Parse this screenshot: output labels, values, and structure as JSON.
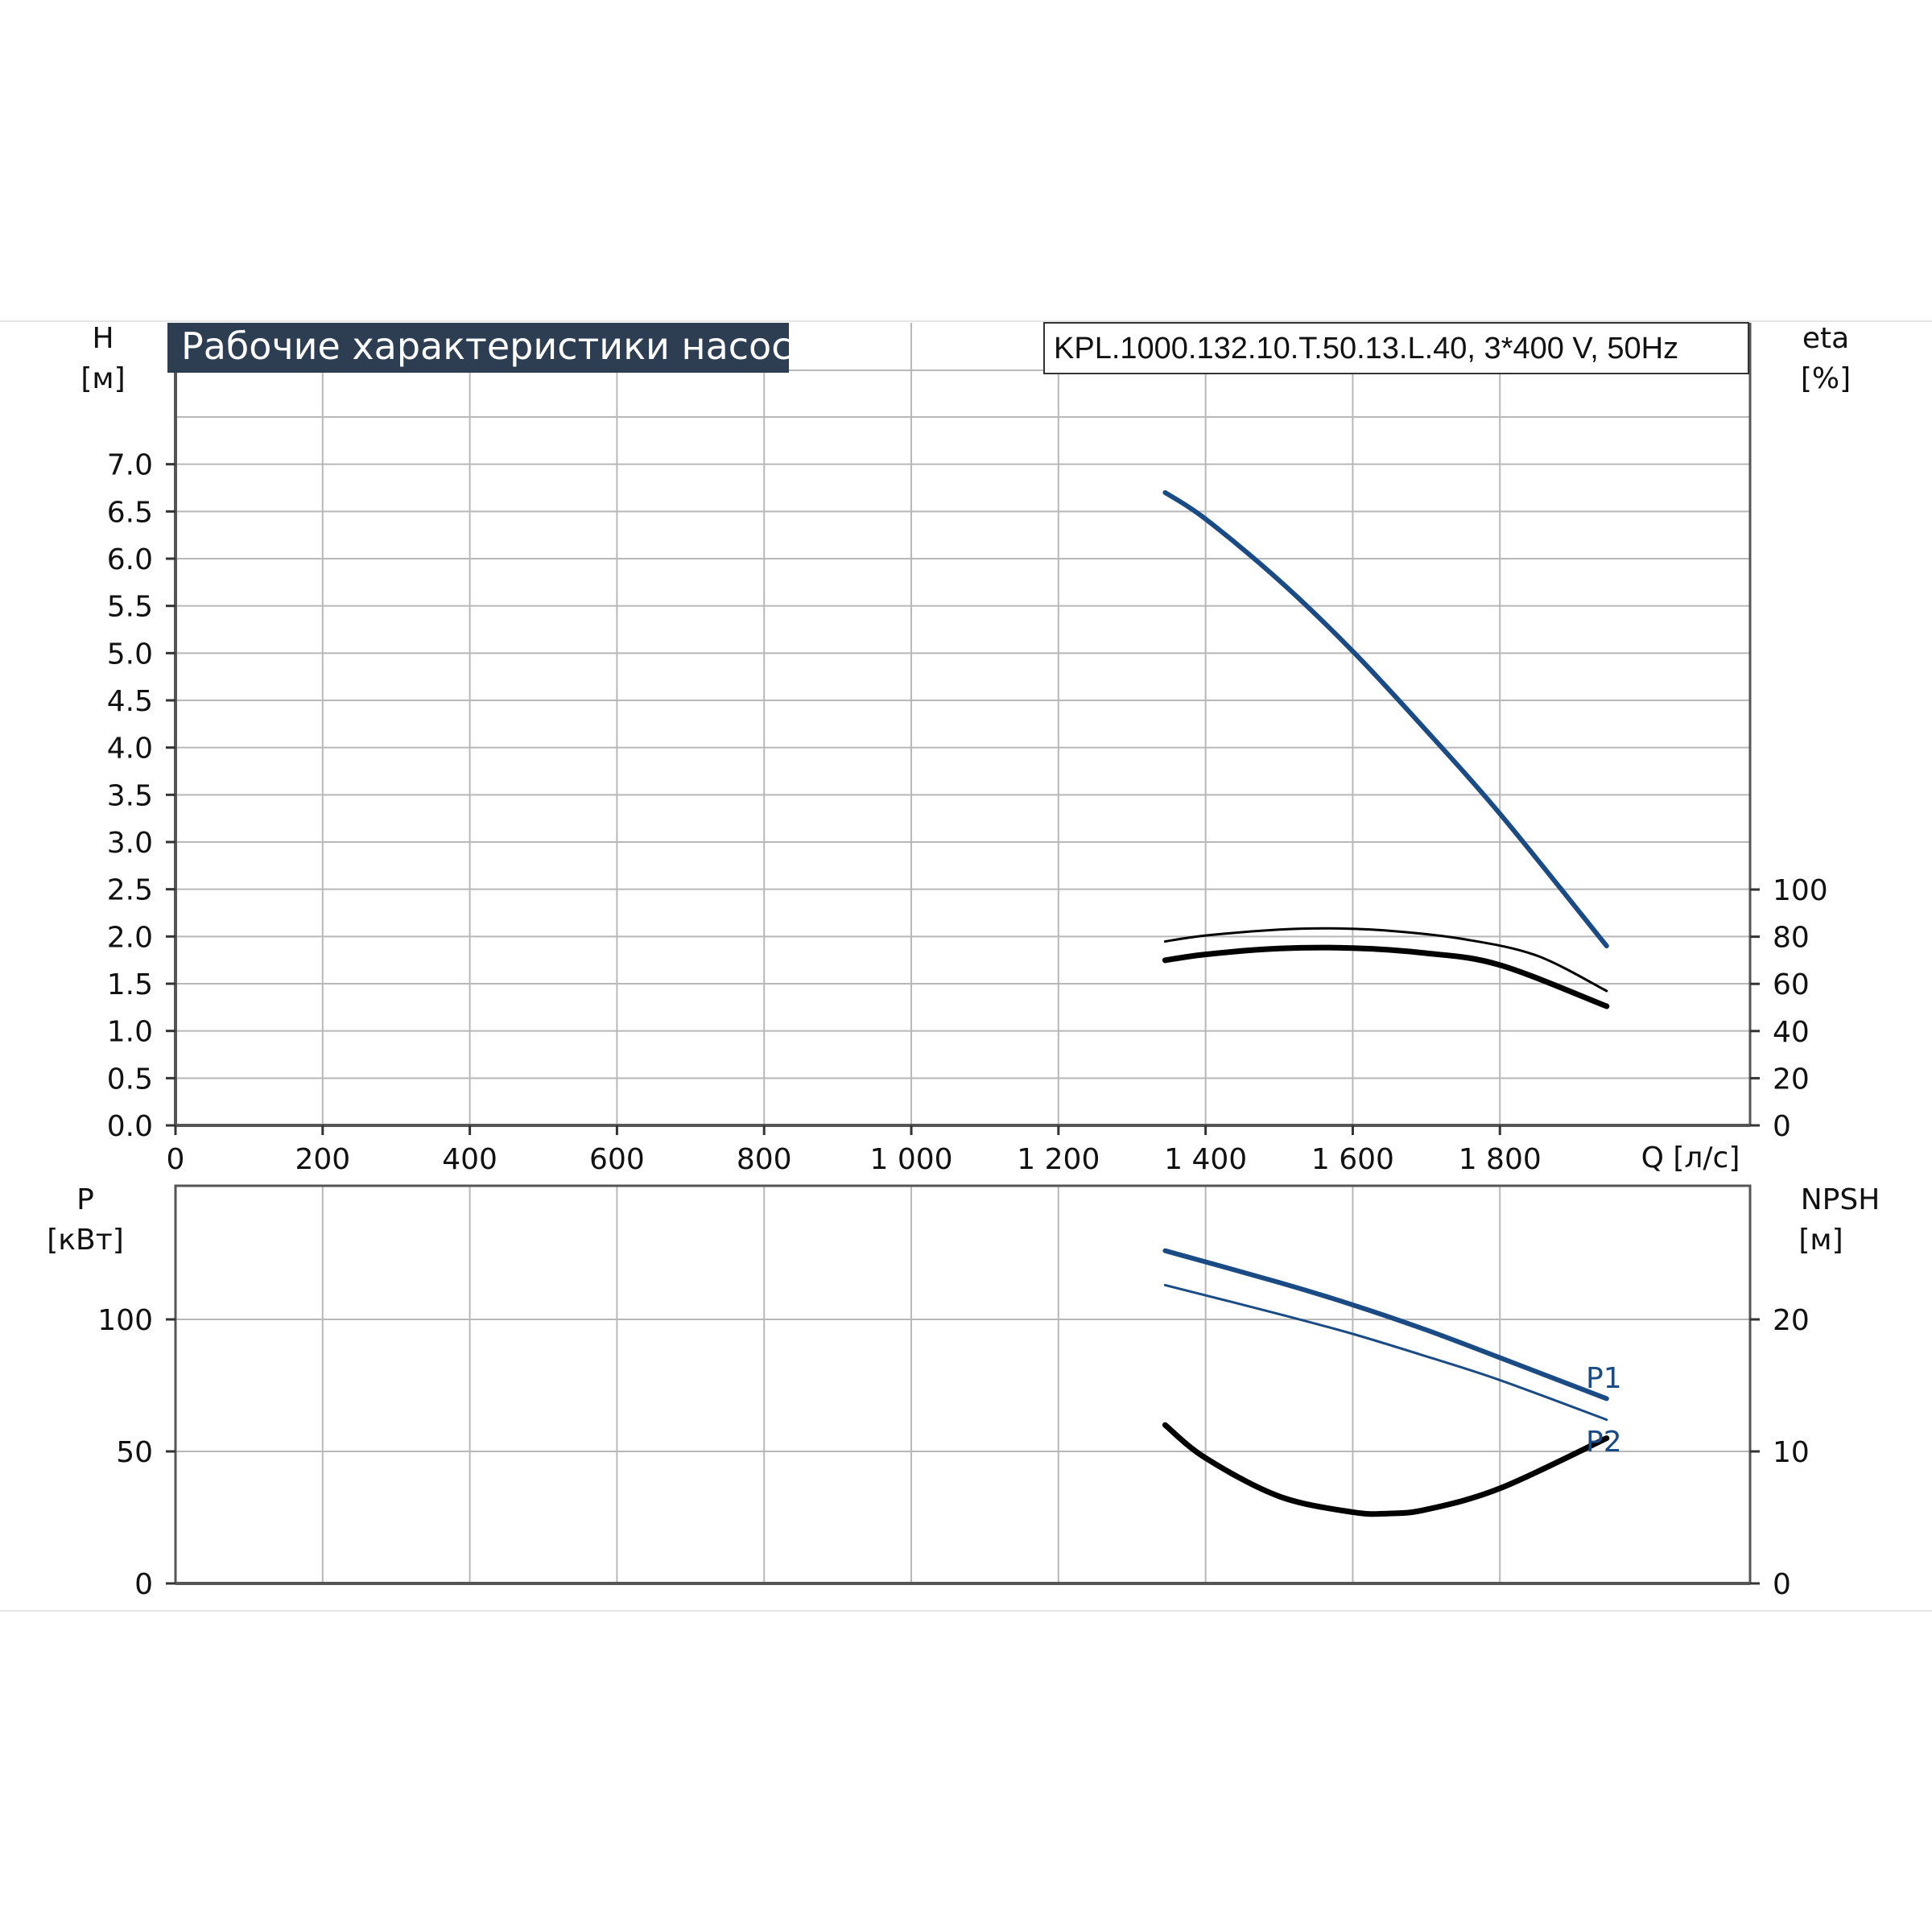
{
  "title": "Рабочие характеристики насоса",
  "model": "KPL.1000.132.10.T.50.13.L.40, 3*400 V, 50Hz",
  "colors": {
    "blue": "#1a4b85",
    "black": "#000000",
    "title_bg": "#2e3e52",
    "grid": "#b8b8b8"
  },
  "chart_data": [
    {
      "type": "line",
      "title": "Рабочие характеристики насоса",
      "xlabel": "Q [л/с]",
      "xlim": [
        0,
        2140
      ],
      "x_ticks": [
        "0",
        "200",
        "400",
        "600",
        "800",
        "1 000",
        "1 200",
        "1 400",
        "1 600",
        "1 800"
      ],
      "x_tick_values": [
        0,
        200,
        400,
        600,
        800,
        1000,
        1200,
        1400,
        1600,
        1800
      ],
      "y_left": {
        "label": "H",
        "unit": "[м]",
        "ylim": [
          0,
          7.5
        ],
        "ticks": [
          "0.0",
          "0.5",
          "1.0",
          "1.5",
          "2.0",
          "2.5",
          "3.0",
          "3.5",
          "4.0",
          "4.5",
          "5.0",
          "5.5",
          "6.0",
          "6.5",
          "7.0"
        ]
      },
      "y_right": {
        "label": "eta",
        "unit": "[%]",
        "ylim": [
          0,
          100
        ],
        "ticks": [
          "0",
          "20",
          "40",
          "60",
          "80",
          "100"
        ]
      },
      "grid": true,
      "series": [
        {
          "axis": "left",
          "color": "#1a4b85",
          "width": 6,
          "x": [
            1345,
            1400,
            1500,
            1600,
            1700,
            1800,
            1945
          ],
          "y": [
            6.7,
            6.42,
            5.77,
            5.02,
            4.18,
            3.3,
            1.9
          ]
        },
        {
          "axis": "right",
          "color": "#000000",
          "width": 3,
          "x": [
            1345,
            1400,
            1500,
            1570,
            1650,
            1750,
            1850,
            1945
          ],
          "y": [
            78,
            80.5,
            83,
            83.5,
            82.5,
            79,
            72,
            57
          ]
        },
        {
          "axis": "right",
          "color": "#000000",
          "width": 7,
          "x": [
            1345,
            1400,
            1500,
            1600,
            1700,
            1800,
            1945
          ],
          "y": [
            70,
            72.5,
            75,
            75.2,
            73,
            68,
            50.5
          ]
        }
      ]
    },
    {
      "type": "line",
      "xlim": [
        0,
        2140
      ],
      "y_left": {
        "label": "P",
        "unit": "[кВт]",
        "ylim": [
          0,
          150
        ],
        "ticks": [
          "0",
          "50",
          "100"
        ]
      },
      "y_right": {
        "label": "NPSH",
        "unit": "[м]",
        "ylim": [
          0,
          30
        ],
        "ticks": [
          "0",
          "10",
          "20"
        ]
      },
      "grid": true,
      "series": [
        {
          "name": "P1",
          "axis": "left",
          "color": "#1a4b85",
          "width": 6,
          "x": [
            1345,
            1500,
            1600,
            1700,
            1800,
            1945
          ],
          "y": [
            126,
            114,
            105.5,
            96,
            85.5,
            70
          ]
        },
        {
          "name": "P2",
          "axis": "left",
          "color": "#1a4b85",
          "width": 3,
          "x": [
            1345,
            1500,
            1600,
            1700,
            1800,
            1945
          ],
          "y": [
            113,
            102,
            94.5,
            86,
            77,
            62
          ]
        },
        {
          "axis": "right",
          "color": "#000000",
          "width": 7,
          "x": [
            1345,
            1400,
            1500,
            1600,
            1650,
            1700,
            1800,
            1945
          ],
          "y": [
            12,
            9.5,
            6.6,
            5.4,
            5.3,
            5.6,
            7.2,
            11
          ]
        }
      ]
    }
  ]
}
